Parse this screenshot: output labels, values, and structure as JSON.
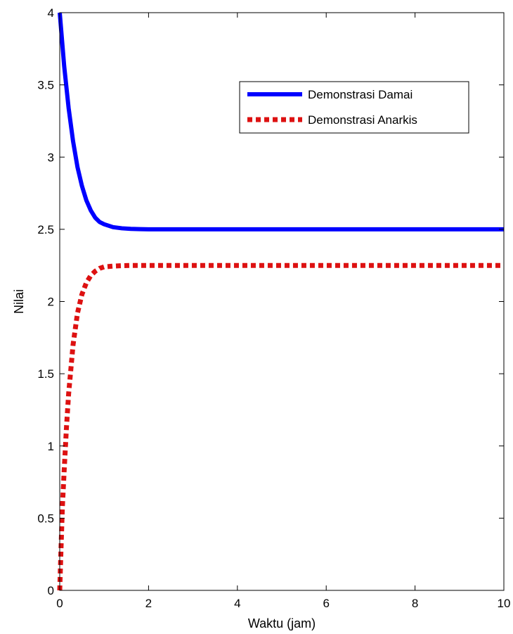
{
  "chart_data": {
    "type": "line",
    "xlabel": "Waktu (jam)",
    "ylabel": "Nilai",
    "xlim": [
      0,
      10
    ],
    "ylim": [
      0,
      4
    ],
    "x_ticks": [
      "0",
      "2",
      "4",
      "6",
      "8",
      "10"
    ],
    "y_ticks": [
      "0",
      "0.5",
      "1",
      "1.5",
      "2",
      "2.5",
      "3",
      "3.5",
      "4"
    ],
    "grid": false,
    "legend_position": "top-right",
    "series": [
      {
        "name": "Demonstrasi Damai",
        "color": "#0000ff",
        "style": "solid",
        "x": [
          0,
          0.1,
          0.2,
          0.3,
          0.4,
          0.5,
          0.6,
          0.7,
          0.8,
          0.9,
          1.0,
          1.2,
          1.4,
          1.6,
          1.8,
          2,
          3,
          4,
          5,
          6,
          7,
          8,
          9,
          10
        ],
        "y": [
          4.0,
          3.63,
          3.34,
          3.11,
          2.93,
          2.8,
          2.7,
          2.63,
          2.58,
          2.55,
          2.535,
          2.515,
          2.507,
          2.503,
          2.501,
          2.5,
          2.5,
          2.5,
          2.5,
          2.5,
          2.5,
          2.5,
          2.5,
          2.5
        ]
      },
      {
        "name": "Demonstrasi Anarkis",
        "color": "#dd1111",
        "style": "dotted",
        "x": [
          0,
          0.03,
          0.06,
          0.1,
          0.15,
          0.2,
          0.3,
          0.4,
          0.5,
          0.6,
          0.7,
          0.8,
          0.9,
          1.0,
          1.2,
          1.4,
          1.6,
          2,
          3,
          4,
          5,
          6,
          7,
          8,
          9,
          10
        ],
        "y": [
          0,
          0.3,
          0.58,
          0.83,
          1.12,
          1.36,
          1.7,
          1.92,
          2.05,
          2.13,
          2.18,
          2.21,
          2.23,
          2.24,
          2.245,
          2.248,
          2.25,
          2.25,
          2.25,
          2.25,
          2.25,
          2.25,
          2.25,
          2.25,
          2.25,
          2.25
        ]
      }
    ]
  }
}
